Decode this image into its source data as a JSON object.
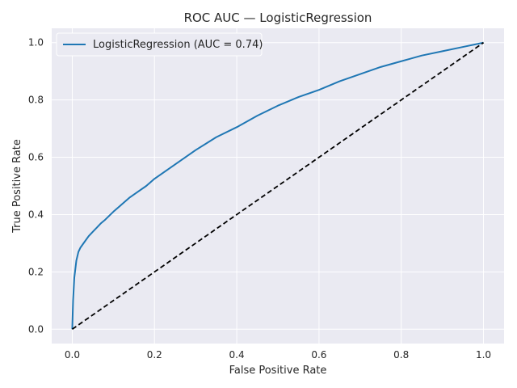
{
  "chart_data": {
    "type": "line",
    "title": "ROC AUC — LogisticRegression",
    "xlabel": "False Positive Rate",
    "ylabel": "True Positive Rate",
    "xlim": [
      -0.05,
      1.05
    ],
    "ylim": [
      -0.05,
      1.05
    ],
    "xticks": [
      "0.0",
      "0.2",
      "0.4",
      "0.6",
      "0.8",
      "1.0"
    ],
    "yticks": [
      "0.0",
      "0.2",
      "0.4",
      "0.6",
      "0.8",
      "1.0"
    ],
    "grid": true,
    "legend_position": "upper-left",
    "series": [
      {
        "name": "LogisticRegression (AUC = 0.74)",
        "color": "#1f77b4",
        "style": "solid",
        "x": [
          0.0,
          0.002,
          0.005,
          0.01,
          0.015,
          0.02,
          0.03,
          0.04,
          0.05,
          0.06,
          0.07,
          0.08,
          0.1,
          0.12,
          0.14,
          0.16,
          0.18,
          0.2,
          0.25,
          0.3,
          0.35,
          0.4,
          0.45,
          0.5,
          0.55,
          0.6,
          0.65,
          0.7,
          0.75,
          0.8,
          0.85,
          0.9,
          0.95,
          1.0
        ],
        "y": [
          0.0,
          0.1,
          0.18,
          0.24,
          0.27,
          0.285,
          0.305,
          0.325,
          0.34,
          0.355,
          0.37,
          0.382,
          0.41,
          0.435,
          0.46,
          0.48,
          0.5,
          0.525,
          0.575,
          0.625,
          0.67,
          0.705,
          0.745,
          0.78,
          0.81,
          0.835,
          0.865,
          0.89,
          0.915,
          0.935,
          0.955,
          0.97,
          0.985,
          1.0
        ]
      },
      {
        "name": "",
        "color": "#000000",
        "style": "dashed",
        "x": [
          0.0,
          1.0
        ],
        "y": [
          0.0,
          1.0
        ]
      }
    ]
  }
}
